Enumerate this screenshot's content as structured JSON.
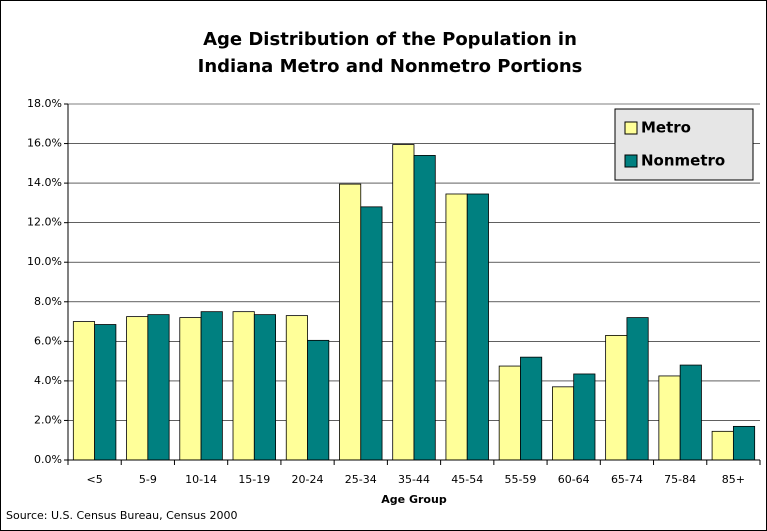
{
  "chart_data": {
    "type": "bar",
    "title": [
      "Age Distribution of the Population in",
      "Indiana Metro and Nonmetro Portions"
    ],
    "x_label": "Age Group",
    "source": "Source: U.S. Census Bureau, Census 2000",
    "categories": [
      "<5",
      "5-9",
      "10-14",
      "15-19",
      "20-24",
      "25-34",
      "35-44",
      "45-54",
      "55-59",
      "60-64",
      "65-74",
      "75-84",
      "85+"
    ],
    "series": [
      {
        "name": "Metro",
        "color": "#ffff99",
        "values": [
          7.0,
          7.25,
          7.2,
          7.5,
          7.3,
          13.95,
          15.95,
          13.45,
          4.75,
          3.7,
          6.3,
          4.25,
          1.45
        ]
      },
      {
        "name": "Nonmetro",
        "color": "#008080",
        "values": [
          6.85,
          7.35,
          7.5,
          7.35,
          6.05,
          12.8,
          15.4,
          13.45,
          5.2,
          4.35,
          7.2,
          4.8,
          1.7
        ]
      }
    ],
    "ylim": [
      0,
      18
    ],
    "yticks": [
      {
        "value": 0,
        "label": "0.0%"
      },
      {
        "value": 2,
        "label": "2.0%"
      },
      {
        "value": 4,
        "label": "4.0%"
      },
      {
        "value": 6,
        "label": "6.0%"
      },
      {
        "value": 8,
        "label": "8.0%"
      },
      {
        "value": 10,
        "label": "10.0%"
      },
      {
        "value": 12,
        "label": "12.0%"
      },
      {
        "value": 14,
        "label": "14.0%"
      },
      {
        "value": 16,
        "label": "16.0%"
      },
      {
        "value": 18,
        "label": "18.0%"
      }
    ],
    "grid": true,
    "legend": "top-right"
  }
}
